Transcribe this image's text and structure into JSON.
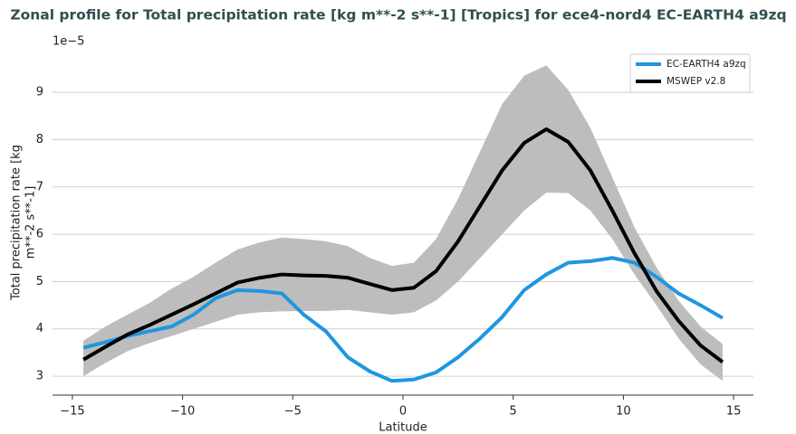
{
  "chart_data": {
    "type": "line",
    "title": "Zonal profile for Total precipitation rate [kg m**-2 s**-1] [Tropics] for ece4-nord4 EC-EARTH4 a9zq",
    "xlabel": "Latitude",
    "ylabel_lines": [
      "Total precipitation rate [kg",
      "m**-2 s**-1]"
    ],
    "y_offset_label": "1e−5",
    "x": [
      -14.5,
      -13.5,
      -12.5,
      -11.5,
      -10.5,
      -9.5,
      -8.5,
      -7.5,
      -6.5,
      -5.5,
      -4.5,
      -3.5,
      -2.5,
      -1.5,
      -0.5,
      0.5,
      1.5,
      2.5,
      3.5,
      4.5,
      5.5,
      6.5,
      7.5,
      8.5,
      9.5,
      10.5,
      11.5,
      12.5,
      13.5,
      14.5
    ],
    "band": {
      "color": "#bdbdbd",
      "upper": [
        3.75,
        4.05,
        4.3,
        4.55,
        4.85,
        5.1,
        5.4,
        5.68,
        5.83,
        5.93,
        5.9,
        5.85,
        5.75,
        5.5,
        5.33,
        5.4,
        5.9,
        6.75,
        7.75,
        8.75,
        9.35,
        9.57,
        9.05,
        8.25,
        7.2,
        6.15,
        5.3,
        4.6,
        4.05,
        3.68
      ],
      "lower": [
        3.0,
        3.28,
        3.53,
        3.7,
        3.85,
        4.0,
        4.15,
        4.3,
        4.35,
        4.37,
        4.38,
        4.38,
        4.4,
        4.35,
        4.3,
        4.35,
        4.6,
        5.0,
        5.5,
        6.0,
        6.5,
        6.88,
        6.87,
        6.5,
        5.9,
        5.15,
        4.5,
        3.8,
        3.25,
        2.9
      ]
    },
    "series": [
      {
        "name": "EC-EARTH4 a9zq",
        "color": "#1f96e0",
        "values": [
          3.6,
          3.72,
          3.85,
          3.95,
          4.05,
          4.3,
          4.65,
          4.82,
          4.8,
          4.75,
          4.3,
          3.95,
          3.4,
          3.1,
          2.9,
          2.93,
          3.08,
          3.4,
          3.8,
          4.25,
          4.82,
          5.15,
          5.4,
          5.43,
          5.5,
          5.4,
          5.1,
          4.75,
          4.5,
          4.23
        ]
      },
      {
        "name": "MSWEP v2.8",
        "color": "#000000",
        "values": [
          3.35,
          3.62,
          3.88,
          4.08,
          4.3,
          4.52,
          4.75,
          4.98,
          5.08,
          5.15,
          5.13,
          5.12,
          5.08,
          4.95,
          4.82,
          4.87,
          5.22,
          5.85,
          6.6,
          7.35,
          7.93,
          8.22,
          7.95,
          7.35,
          6.5,
          5.6,
          4.8,
          4.17,
          3.65,
          3.3
        ]
      }
    ],
    "xlim": [
      -15.9,
      15.9
    ],
    "ylim": [
      2.6,
      9.9
    ],
    "xticks": [
      {
        "value": -15,
        "label": "−15"
      },
      {
        "value": -10,
        "label": "−10"
      },
      {
        "value": -5,
        "label": "−5"
      },
      0,
      5,
      10,
      15
    ],
    "yticks": [
      3,
      4,
      5,
      6,
      7,
      8,
      9
    ],
    "grid": true,
    "legend": "upper right"
  }
}
